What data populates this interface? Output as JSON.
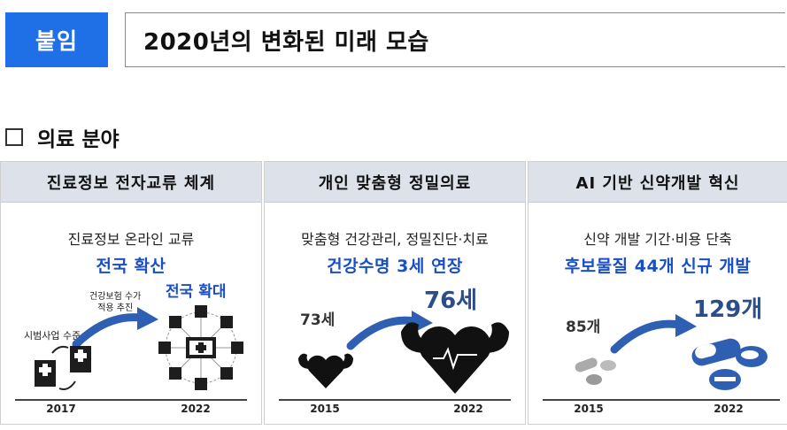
{
  "header": {
    "badge": "붙임",
    "title": "2020년의 변화된 미래 모습"
  },
  "section": {
    "title": "의료 분야"
  },
  "panels": [
    {
      "heading": "진료정보 전자교류 체계",
      "line1": "진료정보 온라인 교류",
      "line2": "전국 확산",
      "label_pilot": "시범사업 수준",
      "label_insurance": "건강보험 수가\n적용 추진",
      "label_expand": "전국 확대",
      "year_start": "2017",
      "year_end": "2022"
    },
    {
      "heading": "개인 맞춤형 정밀의료",
      "line1": "맞춤형 건강관리, 정밀진단·치료",
      "line2": "건강수명 3세 연장",
      "value_start": "73세",
      "value_end": "76세",
      "year_start": "2015",
      "year_end": "2022"
    },
    {
      "heading": "AI 기반 신약개발 혁신",
      "line1": "신약 개발 기간·비용 단축",
      "line2": "후보물질 44개 신규 개발",
      "value_start": "85개",
      "value_end": "129개",
      "year_start": "2015",
      "year_end": "2022"
    }
  ],
  "colors": {
    "accent_blue": "#1f6fe6",
    "text_blue": "#1a4fc4",
    "arrow_blue": "#2f5fb3",
    "panel_header": "#dce1ea"
  }
}
